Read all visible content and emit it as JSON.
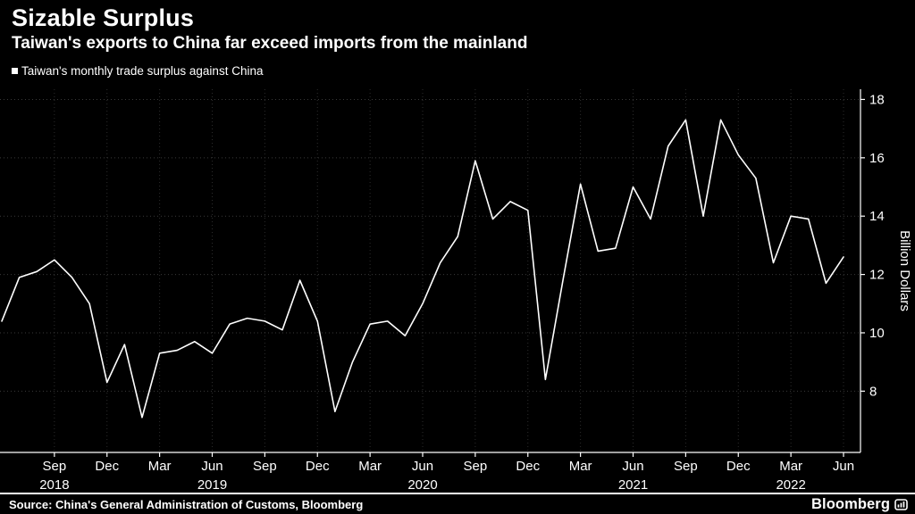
{
  "header": {
    "title": "Sizable Surplus",
    "subtitle": "Taiwan's exports to China far exceed imports from the mainland",
    "legend": "Taiwan's monthly trade surplus against China"
  },
  "footer": {
    "source": "Source: China's General Administration of Customs, Bloomberg",
    "brand": "Bloomberg"
  },
  "colors": {
    "background": "#000000",
    "line": "#ffffff",
    "grid": "#3a3a3a",
    "axis": "#ffffff"
  },
  "chart_data": {
    "type": "line",
    "title": "Sizable Surplus",
    "subtitle": "Taiwan's exports to China far exceed imports from the mainland",
    "ylabel": "Billion Dollars",
    "xlabel": "",
    "grid": true,
    "legend_position": "top-left",
    "y_ticks": [
      8,
      10,
      12,
      14,
      16,
      18
    ],
    "ylim": [
      5.9,
      18.35
    ],
    "x": [
      "Jun 2018",
      "Jul 2018",
      "Aug 2018",
      "Sep 2018",
      "Oct 2018",
      "Nov 2018",
      "Dec 2018",
      "Jan 2019",
      "Feb 2019",
      "Mar 2019",
      "Apr 2019",
      "May 2019",
      "Jun 2019",
      "Jul 2019",
      "Aug 2019",
      "Sep 2019",
      "Oct 2019",
      "Nov 2019",
      "Dec 2019",
      "Jan 2020",
      "Feb 2020",
      "Mar 2020",
      "Apr 2020",
      "May 2020",
      "Jun 2020",
      "Jul 2020",
      "Aug 2020",
      "Sep 2020",
      "Oct 2020",
      "Nov 2020",
      "Dec 2020",
      "Jan 2021",
      "Feb 2021",
      "Mar 2021",
      "Apr 2021",
      "May 2021",
      "Jun 2021",
      "Jul 2021",
      "Aug 2021",
      "Sep 2021",
      "Oct 2021",
      "Nov 2021",
      "Dec 2021",
      "Jan 2022",
      "Feb 2022",
      "Mar 2022",
      "Apr 2022",
      "May 2022",
      "Jun 2022"
    ],
    "series": [
      {
        "name": "Taiwan's monthly trade surplus against China",
        "values": [
          10.4,
          11.9,
          12.1,
          12.5,
          11.9,
          11.0,
          8.3,
          9.6,
          7.1,
          9.3,
          9.4,
          9.7,
          9.3,
          10.3,
          10.5,
          10.4,
          10.1,
          11.8,
          10.4,
          7.3,
          9.0,
          10.3,
          10.4,
          9.9,
          11.0,
          12.4,
          13.3,
          15.9,
          13.9,
          14.5,
          14.2,
          8.4,
          11.8,
          15.1,
          12.8,
          12.9,
          15.0,
          13.9,
          16.4,
          17.3,
          14.0,
          17.3,
          16.1,
          15.3,
          12.4,
          14.0,
          13.9,
          11.7,
          12.6
        ]
      }
    ],
    "x_tick_labels": [
      "Sep",
      "Dec",
      "Mar",
      "Jun",
      "Sep",
      "Dec",
      "Mar",
      "Jun",
      "Sep",
      "Dec",
      "Mar",
      "Jun",
      "Sep",
      "Dec",
      "Mar",
      "Jun"
    ],
    "x_tick_first_index": 3,
    "x_tick_step": 3,
    "year_labels": [
      {
        "label": "2018",
        "index": 3
      },
      {
        "label": "2019",
        "index": 12
      },
      {
        "label": "2020",
        "index": 24
      },
      {
        "label": "2021",
        "index": 36
      },
      {
        "label": "2022",
        "index": 45
      }
    ]
  }
}
